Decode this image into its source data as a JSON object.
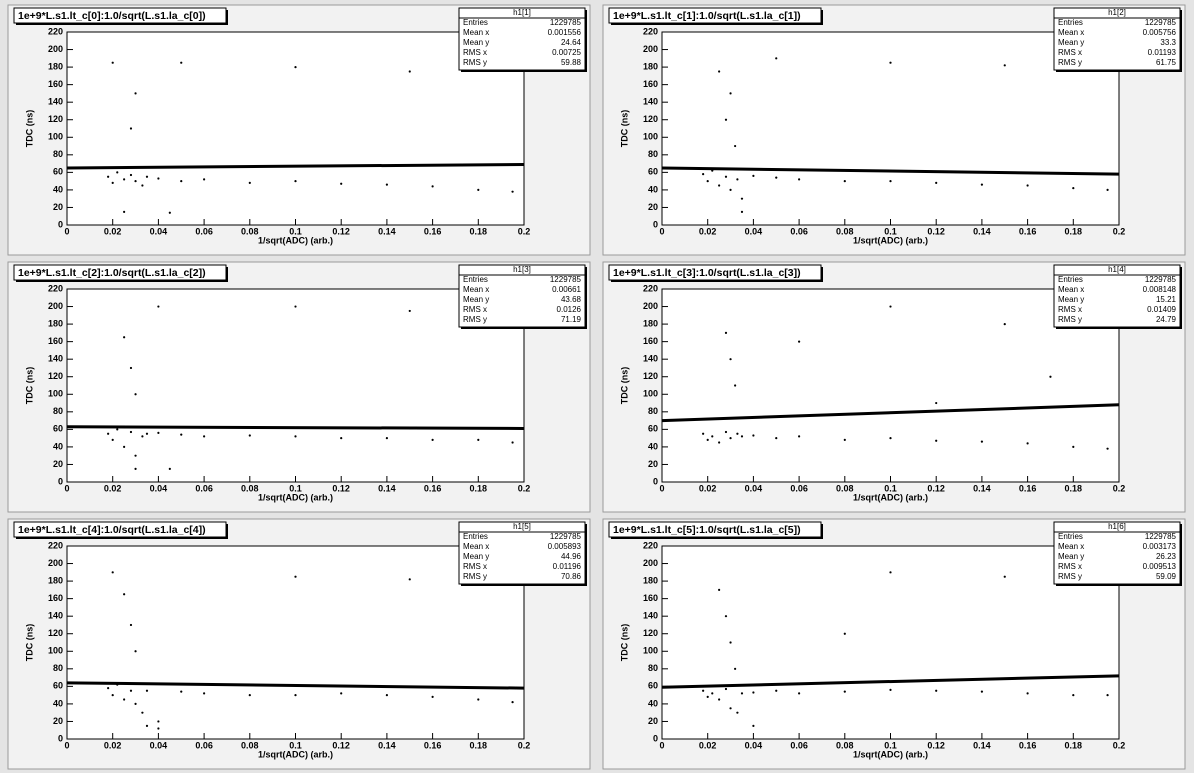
{
  "chart_data": [
    {
      "type": "scatter",
      "title": "1e+9*L.s1.lt_c[0]:1.0/sqrt(L.s1.la_c[0])",
      "x_label": "1/sqrt(ADC) (arb.)",
      "y_label": "TDC (ns)",
      "xlim": [
        0,
        0.2
      ],
      "ylim": [
        0,
        220
      ],
      "xticks": [
        0,
        0.02,
        0.04,
        0.06,
        0.08,
        0.1,
        0.12,
        0.14,
        0.16,
        0.18,
        0.2
      ],
      "yticks": [
        0,
        20,
        40,
        60,
        80,
        100,
        120,
        140,
        160,
        180,
        200,
        220
      ],
      "stats": {
        "name": "h1[1]",
        "labels": [
          "Entries",
          "Mean x",
          "Mean y",
          "RMS x",
          "RMS y"
        ],
        "values": [
          1229785,
          0.001556,
          24.64,
          0.00725,
          59.88
        ]
      },
      "points": {
        "color": "#000000",
        "x": [
          0.018,
          0.02,
          0.022,
          0.025,
          0.028,
          0.03,
          0.033,
          0.035,
          0.04,
          0.05,
          0.06,
          0.08,
          0.1,
          0.12,
          0.14,
          0.16,
          0.18,
          0.195,
          0.02,
          0.03,
          0.05,
          0.1,
          0.15,
          0.025,
          0.028,
          0.045
        ],
        "y": [
          55,
          48,
          60,
          52,
          57,
          50,
          45,
          55,
          53,
          50,
          52,
          48,
          50,
          47,
          46,
          44,
          40,
          38,
          185,
          150,
          185,
          180,
          175,
          15,
          110,
          14
        ]
      },
      "fit": {
        "color": "#000000",
        "x": [
          0,
          0.2
        ],
        "y": [
          65,
          69
        ]
      }
    },
    {
      "type": "scatter",
      "title": "1e+9*L.s1.lt_c[1]:1.0/sqrt(L.s1.la_c[1])",
      "x_label": "1/sqrt(ADC) (arb.)",
      "y_label": "TDC (ns)",
      "xlim": [
        0,
        0.2
      ],
      "ylim": [
        0,
        220
      ],
      "xticks": [
        0,
        0.02,
        0.04,
        0.06,
        0.08,
        0.1,
        0.12,
        0.14,
        0.16,
        0.18,
        0.2
      ],
      "yticks": [
        0,
        20,
        40,
        60,
        80,
        100,
        120,
        140,
        160,
        180,
        200,
        220
      ],
      "stats": {
        "name": "h1[2]",
        "labels": [
          "Entries",
          "Mean x",
          "Mean y",
          "RMS x",
          "RMS y"
        ],
        "values": [
          1229785,
          0.005756,
          33.3,
          0.01193,
          61.75
        ]
      },
      "points": {
        "color": "#000000",
        "x": [
          0.018,
          0.02,
          0.022,
          0.025,
          0.028,
          0.03,
          0.033,
          0.035,
          0.04,
          0.05,
          0.06,
          0.08,
          0.1,
          0.12,
          0.14,
          0.16,
          0.18,
          0.195,
          0.025,
          0.03,
          0.028,
          0.032,
          0.05,
          0.1,
          0.15,
          0.035
        ],
        "y": [
          58,
          50,
          62,
          45,
          55,
          40,
          52,
          30,
          56,
          54,
          52,
          50,
          50,
          48,
          46,
          45,
          42,
          40,
          175,
          150,
          120,
          90,
          190,
          185,
          182,
          15
        ]
      },
      "fit": {
        "color": "#000000",
        "x": [
          0,
          0.2
        ],
        "y": [
          65,
          58
        ]
      }
    },
    {
      "type": "scatter",
      "title": "1e+9*L.s1.lt_c[2]:1.0/sqrt(L.s1.la_c[2])",
      "x_label": "1/sqrt(ADC) (arb.)",
      "y_label": "TDC (ns)",
      "xlim": [
        0,
        0.2
      ],
      "ylim": [
        0,
        220
      ],
      "xticks": [
        0,
        0.02,
        0.04,
        0.06,
        0.08,
        0.1,
        0.12,
        0.14,
        0.16,
        0.18,
        0.2
      ],
      "yticks": [
        0,
        20,
        40,
        60,
        80,
        100,
        120,
        140,
        160,
        180,
        200,
        220
      ],
      "stats": {
        "name": "h1[3]",
        "labels": [
          "Entries",
          "Mean x",
          "Mean y",
          "RMS x",
          "RMS y"
        ],
        "values": [
          1229785,
          0.00661,
          43.68,
          0.0126,
          71.19
        ]
      },
      "points": {
        "color": "#000000",
        "x": [
          0.018,
          0.02,
          0.022,
          0.025,
          0.028,
          0.03,
          0.033,
          0.035,
          0.04,
          0.05,
          0.06,
          0.08,
          0.1,
          0.12,
          0.14,
          0.16,
          0.18,
          0.195,
          0.025,
          0.028,
          0.03,
          0.04,
          0.1,
          0.15,
          0.03,
          0.045
        ],
        "y": [
          55,
          48,
          60,
          40,
          57,
          30,
          52,
          55,
          56,
          54,
          52,
          53,
          52,
          50,
          50,
          48,
          48,
          45,
          165,
          130,
          100,
          200,
          200,
          195,
          15,
          15
        ]
      },
      "fit": {
        "color": "#000000",
        "x": [
          0,
          0.2
        ],
        "y": [
          63,
          61
        ]
      }
    },
    {
      "type": "scatter",
      "title": "1e+9*L.s1.lt_c[3]:1.0/sqrt(L.s1.la_c[3])",
      "x_label": "1/sqrt(ADC) (arb.)",
      "y_label": "TDC (ns)",
      "xlim": [
        0,
        0.2
      ],
      "ylim": [
        0,
        220
      ],
      "xticks": [
        0,
        0.02,
        0.04,
        0.06,
        0.08,
        0.1,
        0.12,
        0.14,
        0.16,
        0.18,
        0.2
      ],
      "yticks": [
        0,
        20,
        40,
        60,
        80,
        100,
        120,
        140,
        160,
        180,
        200,
        220
      ],
      "stats": {
        "name": "h1[4]",
        "labels": [
          "Entries",
          "Mean x",
          "Mean y",
          "RMS x",
          "RMS y"
        ],
        "values": [
          1229785,
          0.008148,
          15.21,
          0.01409,
          24.79
        ]
      },
      "points": {
        "color": "#000000",
        "x": [
          0.018,
          0.02,
          0.022,
          0.025,
          0.028,
          0.03,
          0.033,
          0.035,
          0.04,
          0.05,
          0.06,
          0.08,
          0.1,
          0.12,
          0.14,
          0.16,
          0.18,
          0.195,
          0.028,
          0.03,
          0.032,
          0.1,
          0.15,
          0.17,
          0.06,
          0.12
        ],
        "y": [
          55,
          48,
          52,
          45,
          57,
          50,
          55,
          52,
          53,
          50,
          52,
          48,
          50,
          47,
          46,
          44,
          40,
          38,
          170,
          140,
          110,
          200,
          180,
          120,
          160,
          90
        ]
      },
      "fit": {
        "color": "#000000",
        "x": [
          0,
          0.2
        ],
        "y": [
          70,
          88
        ]
      }
    },
    {
      "type": "scatter",
      "title": "1e+9*L.s1.lt_c[4]:1.0/sqrt(L.s1.la_c[4])",
      "x_label": "1/sqrt(ADC) (arb.)",
      "y_label": "TDC (ns)",
      "xlim": [
        0,
        0.2
      ],
      "ylim": [
        0,
        220
      ],
      "xticks": [
        0,
        0.02,
        0.04,
        0.06,
        0.08,
        0.1,
        0.12,
        0.14,
        0.16,
        0.18,
        0.2
      ],
      "yticks": [
        0,
        20,
        40,
        60,
        80,
        100,
        120,
        140,
        160,
        180,
        200,
        220
      ],
      "stats": {
        "name": "h1[5]",
        "labels": [
          "Entries",
          "Mean x",
          "Mean y",
          "RMS x",
          "RMS y"
        ],
        "values": [
          1229785,
          0.005893,
          44.96,
          0.01196,
          70.86
        ]
      },
      "points": {
        "color": "#000000",
        "x": [
          0.018,
          0.02,
          0.022,
          0.025,
          0.028,
          0.03,
          0.033,
          0.035,
          0.04,
          0.05,
          0.06,
          0.08,
          0.1,
          0.12,
          0.14,
          0.16,
          0.18,
          0.195,
          0.025,
          0.028,
          0.03,
          0.035,
          0.04,
          0.1,
          0.15,
          0.02
        ],
        "y": [
          58,
          50,
          62,
          45,
          55,
          40,
          30,
          55,
          20,
          54,
          52,
          50,
          50,
          52,
          50,
          48,
          45,
          42,
          165,
          130,
          100,
          15,
          12,
          185,
          182,
          190
        ]
      },
      "fit": {
        "color": "#000000",
        "x": [
          0,
          0.2
        ],
        "y": [
          64,
          58
        ]
      }
    },
    {
      "type": "scatter",
      "title": "1e+9*L.s1.lt_c[5]:1.0/sqrt(L.s1.la_c[5])",
      "x_label": "1/sqrt(ADC) (arb.)",
      "y_label": "TDC (ns)",
      "xlim": [
        0,
        0.2
      ],
      "ylim": [
        0,
        220
      ],
      "xticks": [
        0,
        0.02,
        0.04,
        0.06,
        0.08,
        0.1,
        0.12,
        0.14,
        0.16,
        0.18,
        0.2
      ],
      "yticks": [
        0,
        20,
        40,
        60,
        80,
        100,
        120,
        140,
        160,
        180,
        200,
        220
      ],
      "stats": {
        "name": "h1[6]",
        "labels": [
          "Entries",
          "Mean x",
          "Mean y",
          "RMS x",
          "RMS y"
        ],
        "values": [
          1229785,
          0.003173,
          26.23,
          0.009513,
          59.09
        ]
      },
      "points": {
        "color": "#000000",
        "x": [
          0.018,
          0.02,
          0.022,
          0.025,
          0.028,
          0.03,
          0.033,
          0.035,
          0.04,
          0.05,
          0.06,
          0.08,
          0.1,
          0.12,
          0.14,
          0.16,
          0.18,
          0.195,
          0.025,
          0.028,
          0.03,
          0.032,
          0.04,
          0.1,
          0.15,
          0.08
        ],
        "y": [
          55,
          48,
          52,
          45,
          57,
          35,
          30,
          52,
          53,
          55,
          52,
          54,
          56,
          55,
          54,
          52,
          50,
          50,
          170,
          140,
          110,
          80,
          15,
          190,
          185,
          120
        ]
      },
      "fit": {
        "color": "#000000",
        "x": [
          0,
          0.2
        ],
        "y": [
          59,
          72
        ]
      }
    }
  ]
}
